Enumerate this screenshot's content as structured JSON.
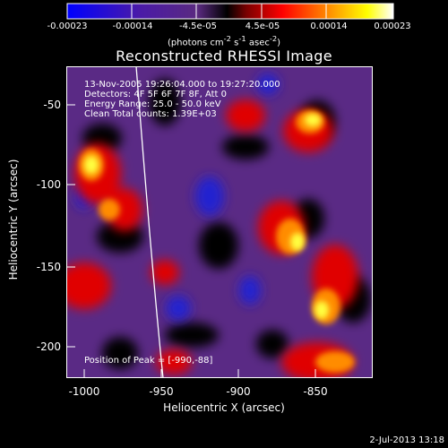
{
  "colorbar": {
    "ticks": [
      "-0.00023",
      "-0.00014",
      "-4.5e-05",
      "4.5e-05",
      "0.00014",
      "0.00023"
    ],
    "units_html": "(photons cm<sup>-2</sup> s<sup>-1</sup> asec<sup>-2</sup>)",
    "gradient_colors": [
      "#0000ff",
      "#4b00a8",
      "#5a2a80",
      "#000000",
      "#ff0000",
      "#ff8c00",
      "#ffff00",
      "#ffffff"
    ]
  },
  "title": "Reconstructed RHESSI Image",
  "annotation": {
    "line1": "13-Nov-2005 19:26:04.000 to 19:27:20.000",
    "line2": "Detectors: 4F 5F 6F 7F 8F, Att 0",
    "line3": "Energy Range: 25.0 - 50.0 keV",
    "line4": "Clean    Total counts: 1.39E+03"
  },
  "peak_label": "Position of Peak = [-990,-88]",
  "axes": {
    "xlabel": "Heliocentric X (arcsec)",
    "ylabel": "Heliocentric Y (arcsec)",
    "x_ticks": [
      "-1000",
      "-950",
      "-900",
      "-850"
    ],
    "y_ticks": [
      "-50",
      "-100",
      "-150",
      "-200"
    ],
    "x_range": [
      -1012,
      -812
    ],
    "y_range": [
      -220,
      -25
    ]
  },
  "footer": "2-Jul-2013 13:18"
}
